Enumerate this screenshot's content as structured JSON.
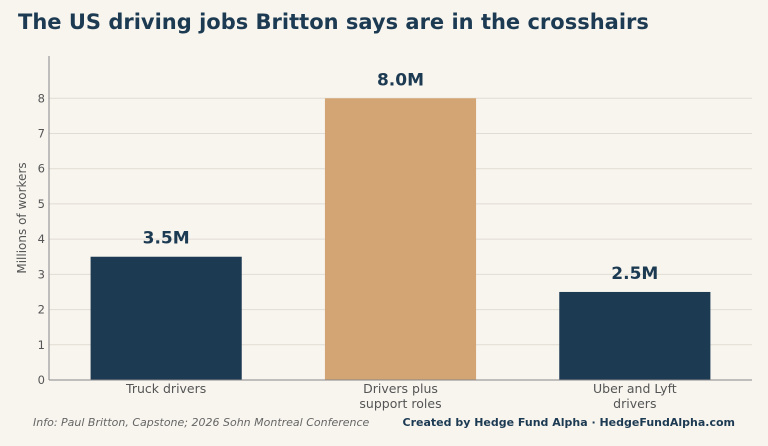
{
  "title": "The US driving jobs Britton says are in the crosshairs",
  "footer": {
    "source": "Info: Paul Britton, Capstone; 2026 Sohn Montreal Conference",
    "credit": "Created by Hedge Fund Alpha · HedgeFundAlpha.com"
  },
  "chart_data": {
    "type": "bar",
    "title": "The US driving jobs Britton says are in the crosshairs",
    "xlabel": "",
    "ylabel": "Millions of workers",
    "ylim": [
      0,
      9.2
    ],
    "yticks": [
      0,
      1,
      2,
      3,
      4,
      5,
      6,
      7,
      8
    ],
    "grid": true,
    "categories": [
      [
        "Truck drivers"
      ],
      [
        "Drivers plus",
        "support roles"
      ],
      [
        "Uber and Lyft",
        "drivers"
      ]
    ],
    "values": [
      3.5,
      8.0,
      2.5
    ],
    "data_labels": [
      "3.5M",
      "8.0M",
      "2.5M"
    ],
    "colors": [
      "#1c3a52",
      "#d4a574",
      "#1c3a52"
    ]
  }
}
